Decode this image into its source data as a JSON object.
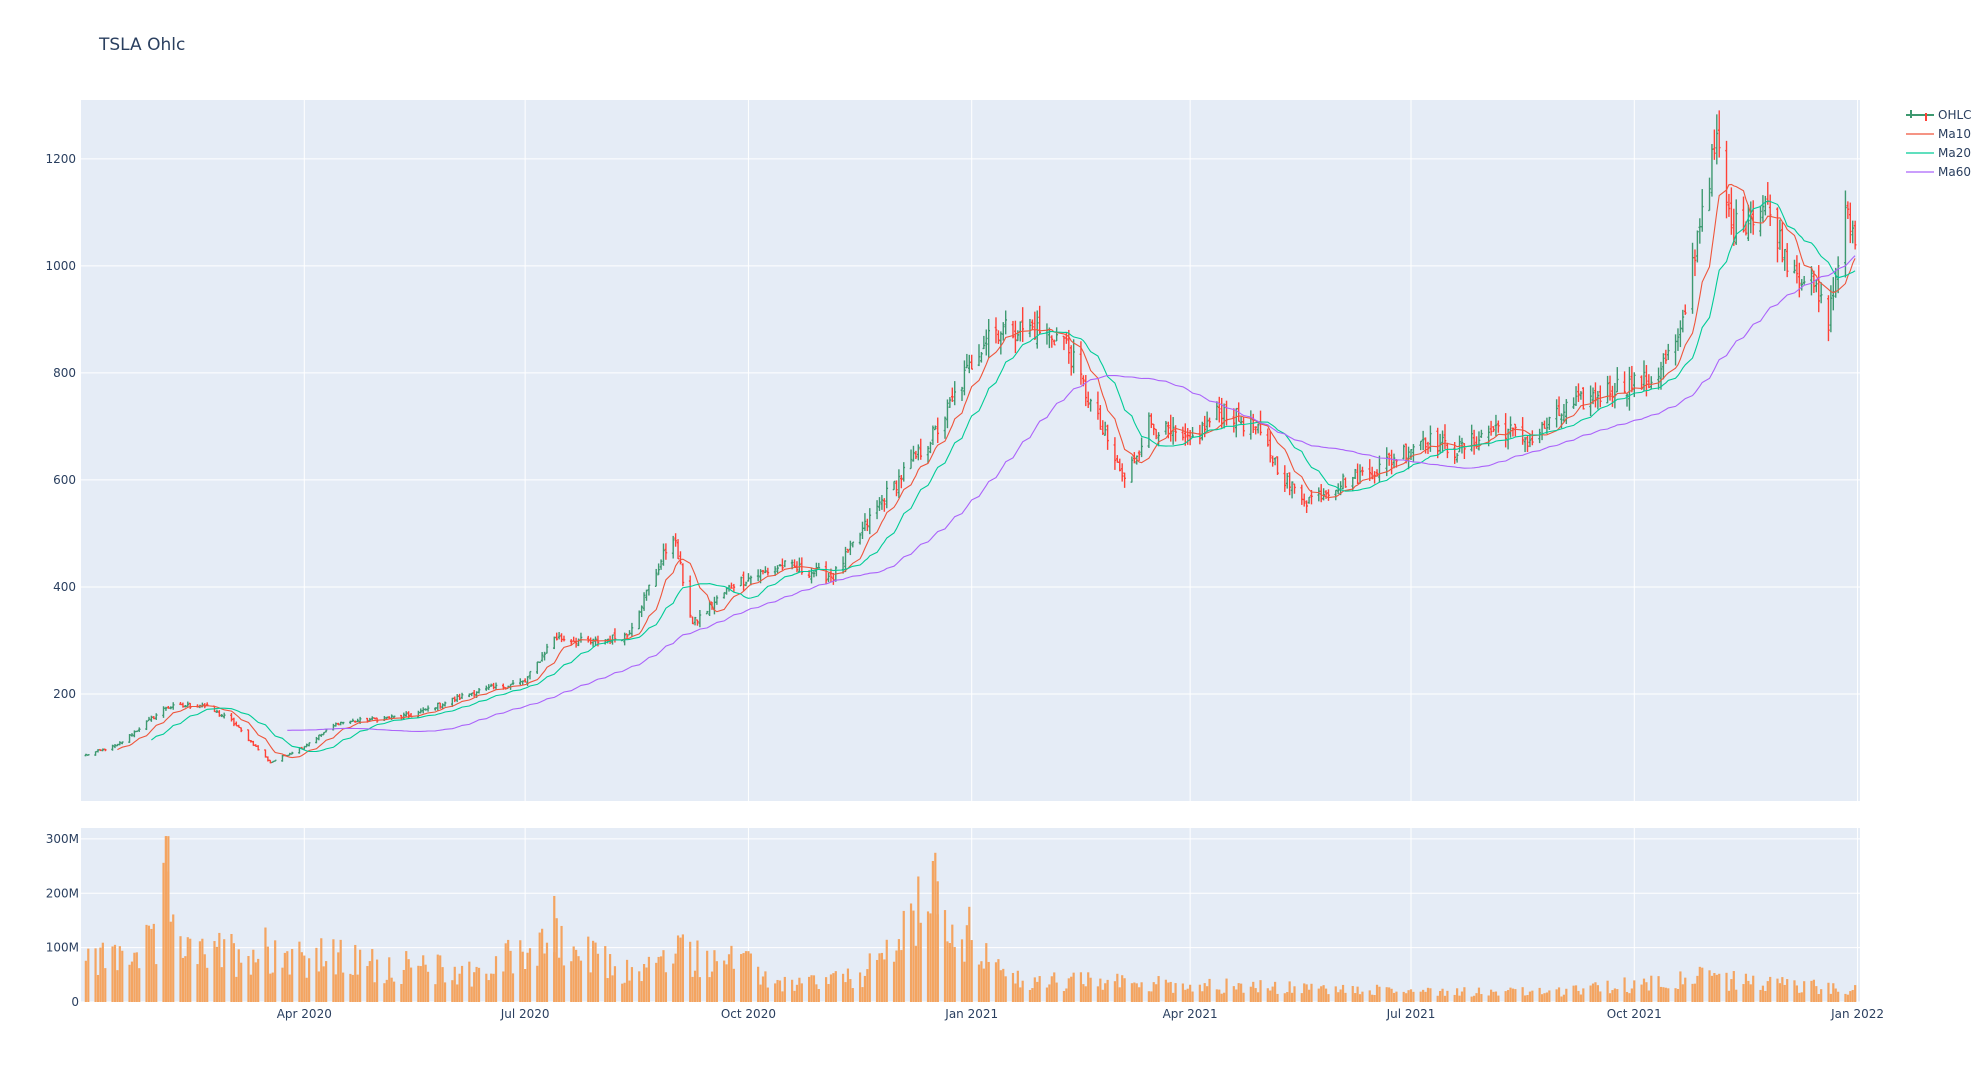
{
  "chart_data": {
    "type": "ohlc",
    "title": "TSLA Ohlc",
    "x_range": [
      "2019-12-31",
      "2022-01-02"
    ],
    "x_ticks": [
      {
        "date": "2020-04-01",
        "label": "Apr 2020"
      },
      {
        "date": "2020-07-01",
        "label": "Jul 2020"
      },
      {
        "date": "2020-10-01",
        "label": "Oct 2020"
      },
      {
        "date": "2021-01-01",
        "label": "Jan 2021"
      },
      {
        "date": "2021-04-01",
        "label": "Apr 2021"
      },
      {
        "date": "2021-07-01",
        "label": "Jul 2021"
      },
      {
        "date": "2021-10-01",
        "label": "Oct 2021"
      },
      {
        "date": "2022-01-01",
        "label": "Jan 2022"
      }
    ],
    "price_axis": {
      "range": [
        0,
        1310
      ],
      "ticks": [
        200,
        400,
        600,
        800,
        1000,
        1200
      ]
    },
    "volume_axis": {
      "range": [
        0,
        320
      ],
      "unit": "M",
      "ticks": [
        {
          "v": 0,
          "label": "0"
        },
        {
          "v": 100,
          "label": "100M"
        },
        {
          "v": 200,
          "label": "200M"
        },
        {
          "v": 300,
          "label": "300M"
        }
      ]
    },
    "grid": true,
    "legend_position": "top-right",
    "legend": [
      {
        "name": "OHLC",
        "color": "#3d9970"
      },
      {
        "name": "Ma10",
        "color": "#ef553b"
      },
      {
        "name": "Ma20",
        "color": "#00cc96"
      },
      {
        "name": "Ma60",
        "color": "#ab63fa"
      }
    ],
    "colors": {
      "up": "#3d9970",
      "down": "#ff4136",
      "volume": "#f4a460",
      "plot_bg": "#e5ecf6",
      "grid": "#ffffff"
    },
    "close_anchors": [
      [
        "2020-01-02",
        86
      ],
      [
        "2020-01-15",
        104
      ],
      [
        "2020-02-04",
        175
      ],
      [
        "2020-02-19",
        180
      ],
      [
        "2020-03-02",
        150
      ],
      [
        "2020-03-18",
        72
      ],
      [
        "2020-03-31",
        100
      ],
      [
        "2020-04-15",
        146
      ],
      [
        "2020-05-15",
        160
      ],
      [
        "2020-06-10",
        204
      ],
      [
        "2020-07-01",
        223
      ],
      [
        "2020-07-13",
        306
      ],
      [
        "2020-07-28",
        296
      ],
      [
        "2020-08-12",
        310
      ],
      [
        "2020-08-31",
        498
      ],
      [
        "2020-09-08",
        330
      ],
      [
        "2020-09-25",
        407
      ],
      [
        "2020-10-15",
        440
      ],
      [
        "2020-11-05",
        420
      ],
      [
        "2020-11-24",
        555
      ],
      [
        "2020-12-18",
        695
      ],
      [
        "2021-01-08",
        880
      ],
      [
        "2021-01-26",
        883
      ],
      [
        "2021-02-08",
        863
      ],
      [
        "2021-02-23",
        698
      ],
      [
        "2021-03-05",
        597
      ],
      [
        "2021-03-15",
        707
      ],
      [
        "2021-03-31",
        667
      ],
      [
        "2021-04-14",
        732
      ],
      [
        "2021-04-28",
        694
      ],
      [
        "2021-05-12",
        589
      ],
      [
        "2021-05-19",
        563
      ],
      [
        "2021-06-04",
        599
      ],
      [
        "2021-06-18",
        623
      ],
      [
        "2021-07-06",
        678
      ],
      [
        "2021-07-20",
        655
      ],
      [
        "2021-08-06",
        700
      ],
      [
        "2021-08-19",
        673
      ],
      [
        "2021-09-03",
        733
      ],
      [
        "2021-09-24",
        775
      ],
      [
        "2021-10-08",
        785
      ],
      [
        "2021-10-20",
        865
      ],
      [
        "2021-10-29",
        1114
      ],
      [
        "2021-11-04",
        1229
      ],
      [
        "2021-11-10",
        1067
      ],
      [
        "2021-11-24",
        1116
      ],
      [
        "2021-12-03",
        1014
      ],
      [
        "2021-12-14",
        958
      ],
      [
        "2021-12-20",
        899
      ],
      [
        "2021-12-27",
        1093
      ],
      [
        "2021-12-31",
        1056
      ]
    ],
    "volume_profile": [
      [
        "2020-01-02",
        80
      ],
      [
        "2020-01-31",
        110
      ],
      [
        "2020-02-04",
        300
      ],
      [
        "2020-02-14",
        90
      ],
      [
        "2020-03-16",
        110
      ],
      [
        "2020-04-30",
        75
      ],
      [
        "2020-06-15",
        60
      ],
      [
        "2020-07-07",
        130
      ],
      [
        "2020-08-15",
        55
      ],
      [
        "2020-09-01",
        100
      ],
      [
        "2020-09-25",
        85
      ],
      [
        "2020-10-15",
        35
      ],
      [
        "2020-11-17",
        50
      ],
      [
        "2020-12-18",
        220
      ],
      [
        "2021-01-15",
        45
      ],
      [
        "2021-03-01",
        40
      ],
      [
        "2021-06-01",
        25
      ],
      [
        "2021-09-01",
        20
      ],
      [
        "2021-10-25",
        50
      ],
      [
        "2021-11-05",
        45
      ],
      [
        "2021-12-31",
        25
      ]
    ]
  }
}
